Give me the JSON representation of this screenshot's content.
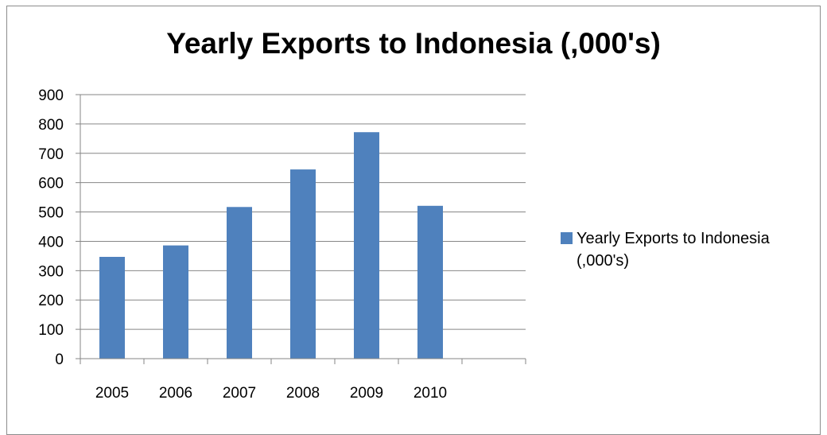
{
  "chart_data": {
    "type": "bar",
    "title": "Yearly Exports to Indonesia (,000's)",
    "xlabel": "",
    "ylabel": "",
    "categories": [
      "2005",
      "2006",
      "2007",
      "2008",
      "2009",
      "2010",
      ""
    ],
    "series": [
      {
        "name": "Yearly Exports to Indonesia (,000's)",
        "values": [
          347,
          386,
          517,
          645,
          772,
          521,
          null
        ],
        "color": "#4f81bd"
      }
    ],
    "ylim": [
      0,
      900
    ],
    "yticks": [
      "0",
      "100",
      "200",
      "300",
      "400",
      "500",
      "600",
      "700",
      "800",
      "900"
    ],
    "grid": true,
    "legend_position": "right"
  }
}
